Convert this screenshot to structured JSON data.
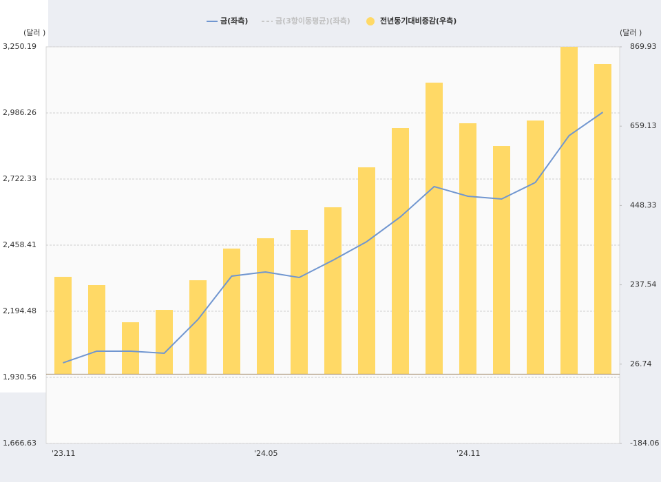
{
  "chart_data": {
    "type": "bar-line",
    "y_label": "(달러 )",
    "y2_label": "(달러 )",
    "categories": [
      "'23.11",
      null,
      null,
      null,
      null,
      null,
      "'24.05",
      null,
      null,
      null,
      null,
      null,
      "'24.11",
      null,
      null,
      null,
      null
    ],
    "ylim": [
      1666.63,
      3250.19
    ],
    "yticks": [
      {
        "value": 1666.63,
        "label": "1,666.63"
      },
      {
        "value": 1930.56,
        "label": "1,930.56"
      },
      {
        "value": 2194.48,
        "label": "2,194.48"
      },
      {
        "value": 2458.41,
        "label": "2,458.41"
      },
      {
        "value": 2722.33,
        "label": "2,722.33"
      },
      {
        "value": 2986.26,
        "label": "2,986.26"
      },
      {
        "value": 3250.19,
        "label": "3,250.19"
      }
    ],
    "y2lim": [
      -184.06,
      869.93
    ],
    "y2ticks": [
      -184.06,
      26.74,
      237.54,
      448.33,
      659.13,
      869.93
    ],
    "grid": true,
    "series": [
      {
        "name": "금(좌측)",
        "type": "line",
        "color": "#7096d0",
        "visible": true,
        "values": [
          1988.4,
          2035.1,
          2035.0,
          2026.9,
          2161.6,
          2334.8,
          2351.3,
          2329.3,
          2398.0,
          2472.2,
          2571.2,
          2692.2,
          2653.7,
          2642.7,
          2708.6,
          2895.6,
          2989.0
        ]
      },
      {
        "name": "금(3항이동평균)(좌측)",
        "type": "line",
        "color": "#c8c8c8",
        "visible": false,
        "values": [
          null,
          null,
          null,
          null,
          null,
          null,
          null,
          null,
          null,
          null,
          null,
          null,
          null,
          null,
          null,
          null,
          null
        ]
      },
      {
        "name": "전년동기대비증감(우측)",
        "type": "bar",
        "axis": "y2",
        "color": "#ffd966",
        "visible": true,
        "values": [
          258.7,
          236.8,
          138.0,
          170.9,
          249.6,
          333.8,
          361.2,
          383.2,
          443.5,
          549.7,
          654.0,
          774.7,
          666.8,
          606.4,
          674.1,
          869.9,
          824.2
        ]
      }
    ]
  }
}
